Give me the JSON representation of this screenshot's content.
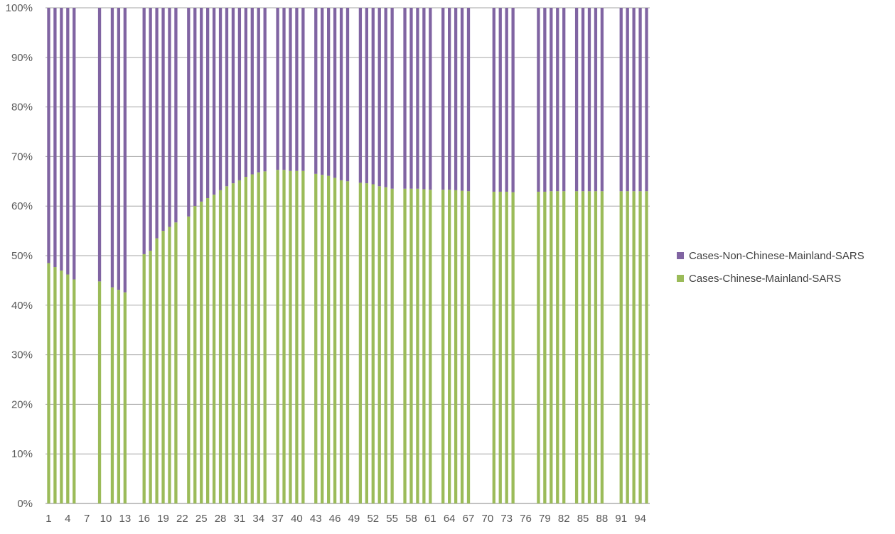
{
  "chart_data": {
    "type": "bar",
    "stacking": "percent",
    "x_tick_labels": [
      "1",
      "4",
      "7",
      "10",
      "13",
      "16",
      "19",
      "22",
      "25",
      "28",
      "31",
      "34",
      "37",
      "40",
      "43",
      "46",
      "49",
      "52",
      "55",
      "58",
      "61",
      "64",
      "67",
      "70",
      "73",
      "76",
      "79",
      "82",
      "85",
      "88",
      "91",
      "94"
    ],
    "y_tick_labels": [
      "0%",
      "10%",
      "20%",
      "30%",
      "40%",
      "50%",
      "60%",
      "70%",
      "80%",
      "90%",
      "100%"
    ],
    "ylim": [
      0,
      100
    ],
    "grid": true,
    "legend_position": "right",
    "colors": {
      "chinese": "#9BBB59",
      "non_chinese": "#8064A2",
      "grid": "#A6A6A6",
      "axis_text": "#595959"
    },
    "categories": [
      1,
      2,
      3,
      4,
      5,
      6,
      7,
      8,
      9,
      10,
      11,
      12,
      13,
      14,
      15,
      16,
      17,
      18,
      19,
      20,
      21,
      22,
      23,
      24,
      25,
      26,
      27,
      28,
      29,
      30,
      31,
      32,
      33,
      34,
      35,
      36,
      37,
      38,
      39,
      40,
      41,
      42,
      43,
      44,
      45,
      46,
      47,
      48,
      49,
      50,
      51,
      52,
      53,
      54,
      55,
      56,
      57,
      58,
      59,
      60,
      61,
      62,
      63,
      64,
      65,
      66,
      67,
      68,
      69,
      70,
      71,
      72,
      73,
      74,
      75,
      76,
      77,
      78,
      79,
      80,
      81,
      82,
      83,
      84,
      85,
      86,
      87,
      88,
      89,
      90,
      91,
      92,
      93,
      94,
      95
    ],
    "series": [
      {
        "name": "Cases-Chinese-Mainland-SARS",
        "values": [
          48.5,
          47.7,
          47.0,
          46.2,
          45.2,
          null,
          null,
          null,
          44.8,
          null,
          43.6,
          43.1,
          42.6,
          null,
          null,
          50.3,
          51.0,
          53.5,
          55.0,
          55.8,
          56.7,
          null,
          57.9,
          60.0,
          60.9,
          61.6,
          62.3,
          63.2,
          64.0,
          64.6,
          65.2,
          65.9,
          66.4,
          66.8,
          67.0,
          null,
          67.3,
          67.3,
          67.1,
          67.1,
          67.1,
          null,
          66.5,
          66.3,
          66.1,
          65.7,
          65.2,
          65.0,
          null,
          64.7,
          64.6,
          64.4,
          64.0,
          63.8,
          63.5,
          null,
          63.5,
          63.5,
          63.5,
          63.4,
          63.3,
          null,
          63.3,
          63.3,
          63.2,
          63.1,
          63.0,
          null,
          null,
          null,
          62.9,
          62.9,
          62.9,
          62.8,
          null,
          null,
          null,
          62.9,
          62.9,
          63.0,
          63.0,
          63.0,
          null,
          63.0,
          63.0,
          63.0,
          63.0,
          63.0,
          null,
          null,
          63.0,
          63.0,
          63.0,
          63.0,
          63.0
        ]
      },
      {
        "name": "Cases-Non-Chinese-Mainland-SARS",
        "values": [
          51.5,
          52.3,
          53.0,
          53.8,
          54.8,
          null,
          null,
          null,
          55.2,
          null,
          56.4,
          56.9,
          57.4,
          null,
          null,
          49.7,
          49.0,
          46.5,
          45.0,
          44.2,
          43.3,
          null,
          42.1,
          40.0,
          39.1,
          38.4,
          37.7,
          36.8,
          36.0,
          35.4,
          34.8,
          34.1,
          33.6,
          33.2,
          33.0,
          null,
          32.7,
          32.7,
          32.9,
          32.9,
          32.9,
          null,
          33.5,
          33.7,
          33.9,
          34.3,
          34.8,
          35.0,
          null,
          35.3,
          35.4,
          35.6,
          36.0,
          36.2,
          36.5,
          null,
          36.5,
          36.5,
          36.5,
          36.6,
          36.7,
          null,
          36.7,
          36.7,
          36.8,
          36.9,
          37.0,
          null,
          null,
          null,
          37.1,
          37.1,
          37.1,
          37.2,
          null,
          null,
          null,
          37.1,
          37.1,
          37.0,
          37.0,
          37.0,
          null,
          37.0,
          37.0,
          37.0,
          37.0,
          37.0,
          null,
          null,
          37.0,
          37.0,
          37.0,
          37.0,
          37.0
        ]
      }
    ]
  }
}
